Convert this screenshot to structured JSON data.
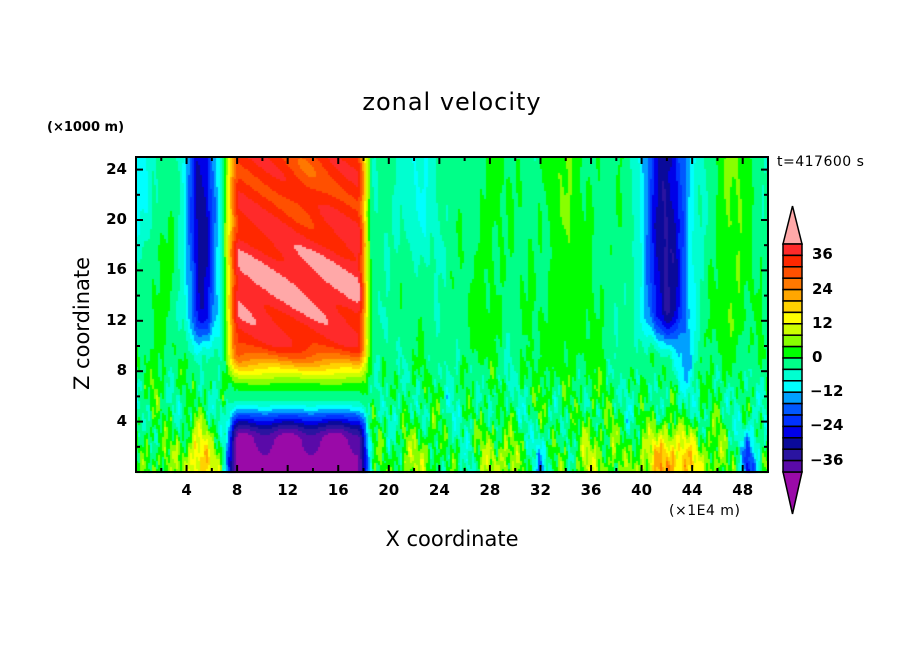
{
  "chart_data": {
    "type": "heatmap",
    "subtype": "filled-contour",
    "title": "zonal velocity",
    "xlabel": "X coordinate",
    "ylabel": "Z coordinate",
    "x_unit": "(×1E4 m)",
    "y_unit": "(×1000 m)",
    "time_label": "t=417600 s",
    "xlim": [
      0,
      50
    ],
    "ylim": [
      0,
      25
    ],
    "xticks": [
      4,
      8,
      12,
      16,
      20,
      24,
      28,
      32,
      36,
      40,
      44,
      48
    ],
    "yticks": [
      4,
      8,
      12,
      16,
      20,
      24
    ],
    "colorbar": {
      "levels": [
        -40,
        -36,
        -32,
        -28,
        -24,
        -20,
        -16,
        -12,
        -8,
        -4,
        0,
        4,
        8,
        12,
        16,
        20,
        24,
        28,
        32,
        36,
        40
      ],
      "tick_labels": [
        "-36",
        "-24",
        "-12",
        "0",
        "12",
        "24",
        "36"
      ],
      "tick_values": [
        -36,
        -24,
        -12,
        0,
        12,
        24,
        36
      ],
      "extend": "both",
      "colors": [
        "#9a0aa8",
        "#5a0aa8",
        "#2a14a0",
        "#0a0a9a",
        "#0000e8",
        "#0032ff",
        "#0058ff",
        "#00a0ff",
        "#00ffff",
        "#00ffd0",
        "#00ff88",
        "#00ff00",
        "#88ff00",
        "#ccff00",
        "#ffff00",
        "#ffd200",
        "#ffa600",
        "#ff7800",
        "#ff5000",
        "#ff2800",
        "#ff2a2a",
        "#ffa8a8"
      ]
    },
    "features": [
      {
        "name": "upper westerly jet",
        "x_range": [
          7,
          18.5
        ],
        "z_range": [
          7,
          25
        ],
        "peak_value": 36
      },
      {
        "name": "lower easterly core",
        "x_range": [
          7,
          18.5
        ],
        "z_range": [
          0,
          5
        ],
        "peak_value": -36
      },
      {
        "name": "upper easterly band",
        "x_range": [
          4,
          6.5
        ],
        "z_range": [
          9,
          25
        ],
        "peak_value": -24
      },
      {
        "name": "upper easterly band",
        "x_range": [
          39.5,
          45
        ],
        "z_range": [
          9,
          25
        ],
        "peak_value": -28
      },
      {
        "name": "surface westerly",
        "x_range": [
          0,
          6
        ],
        "z_range": [
          0,
          3
        ],
        "peak_value": 20
      },
      {
        "name": "surface westerly",
        "x_range": [
          38,
          46
        ],
        "z_range": [
          0,
          3
        ],
        "peak_value": 24
      }
    ]
  }
}
